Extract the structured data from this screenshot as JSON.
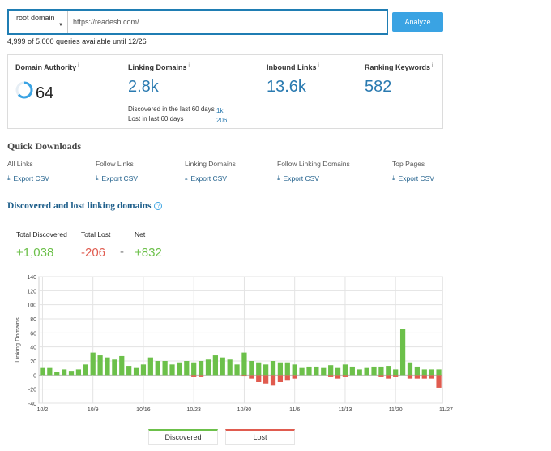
{
  "search": {
    "mode_label": "root domain",
    "url_value": "https://readesh.com/",
    "analyze_label": "Analyze"
  },
  "quota_text": "4,999 of 5,000 queries available until 12/26",
  "metrics": {
    "domain_authority": {
      "title": "Domain Authority",
      "info": "i",
      "value": "64"
    },
    "linking_domains": {
      "title": "Linking Domains",
      "info": "i",
      "value": "2.8k",
      "discovered_label": "Discovered in the last 60 days",
      "discovered_value": "1k",
      "lost_label": "Lost in last 60 days",
      "lost_value": "206"
    },
    "inbound_links": {
      "title": "Inbound Links",
      "info": "i",
      "value": "13.6k"
    },
    "ranking_keywords": {
      "title": "Ranking Keywords",
      "info": "i",
      "value": "582"
    }
  },
  "quick_downloads": {
    "title": "Quick Downloads",
    "items": [
      {
        "label": "All Links",
        "link": "Export CSV"
      },
      {
        "label": "Follow Links",
        "link": "Export CSV"
      },
      {
        "label": "Linking Domains",
        "link": "Export CSV"
      },
      {
        "label": "Follow Linking Domains",
        "link": "Export CSV"
      },
      {
        "label": "Top Pages",
        "link": "Export CSV"
      }
    ]
  },
  "chart_section": {
    "title": "Discovered and lost linking domains",
    "help": "?",
    "total_discovered_label": "Total Discovered",
    "total_discovered_value": "+1,038",
    "total_lost_label": "Total Lost",
    "total_lost_value": "-206",
    "separator": "-",
    "net_label": "Net",
    "net_value": "+832"
  },
  "colors": {
    "discovered": "#6cc04a",
    "lost": "#e05b4f",
    "accent": "#2a7ab0"
  },
  "chart_data": {
    "type": "bar",
    "ylabel": "Linking Domains",
    "ylim": [
      -40,
      140
    ],
    "yticks": [
      -40,
      -20,
      0,
      20,
      40,
      60,
      80,
      100,
      120,
      140
    ],
    "xtick_labels": [
      "10/2",
      "10/9",
      "10/16",
      "10/23",
      "10/30",
      "11/6",
      "11/13",
      "11/20",
      "11/27"
    ],
    "xtick_index": [
      0,
      7,
      14,
      21,
      28,
      35,
      42,
      49,
      56
    ],
    "series": [
      {
        "name": "Discovered",
        "values": [
          10,
          10,
          5,
          8,
          6,
          8,
          15,
          32,
          28,
          25,
          22,
          27,
          13,
          10,
          15,
          25,
          20,
          20,
          15,
          18,
          20,
          18,
          20,
          22,
          28,
          25,
          22,
          15,
          32,
          20,
          18,
          15,
          20,
          18,
          18,
          15,
          10,
          12,
          12,
          10,
          14,
          10,
          15,
          12,
          8,
          10,
          12,
          12,
          13,
          8,
          65,
          18,
          12,
          8,
          8,
          8
        ]
      },
      {
        "name": "Lost",
        "values": [
          0,
          0,
          0,
          0,
          0,
          0,
          0,
          0,
          0,
          0,
          0,
          0,
          0,
          0,
          0,
          0,
          0,
          0,
          0,
          0,
          0,
          -3,
          -3,
          0,
          0,
          0,
          0,
          0,
          -2,
          -5,
          -10,
          -12,
          -15,
          -10,
          -8,
          -5,
          0,
          0,
          0,
          0,
          -3,
          -5,
          -3,
          0,
          0,
          0,
          0,
          -3,
          -5,
          -3,
          0,
          -5,
          -5,
          -5,
          -5,
          -18
        ]
      }
    ]
  },
  "legend": {
    "discovered": "Discovered",
    "lost": "Lost"
  }
}
